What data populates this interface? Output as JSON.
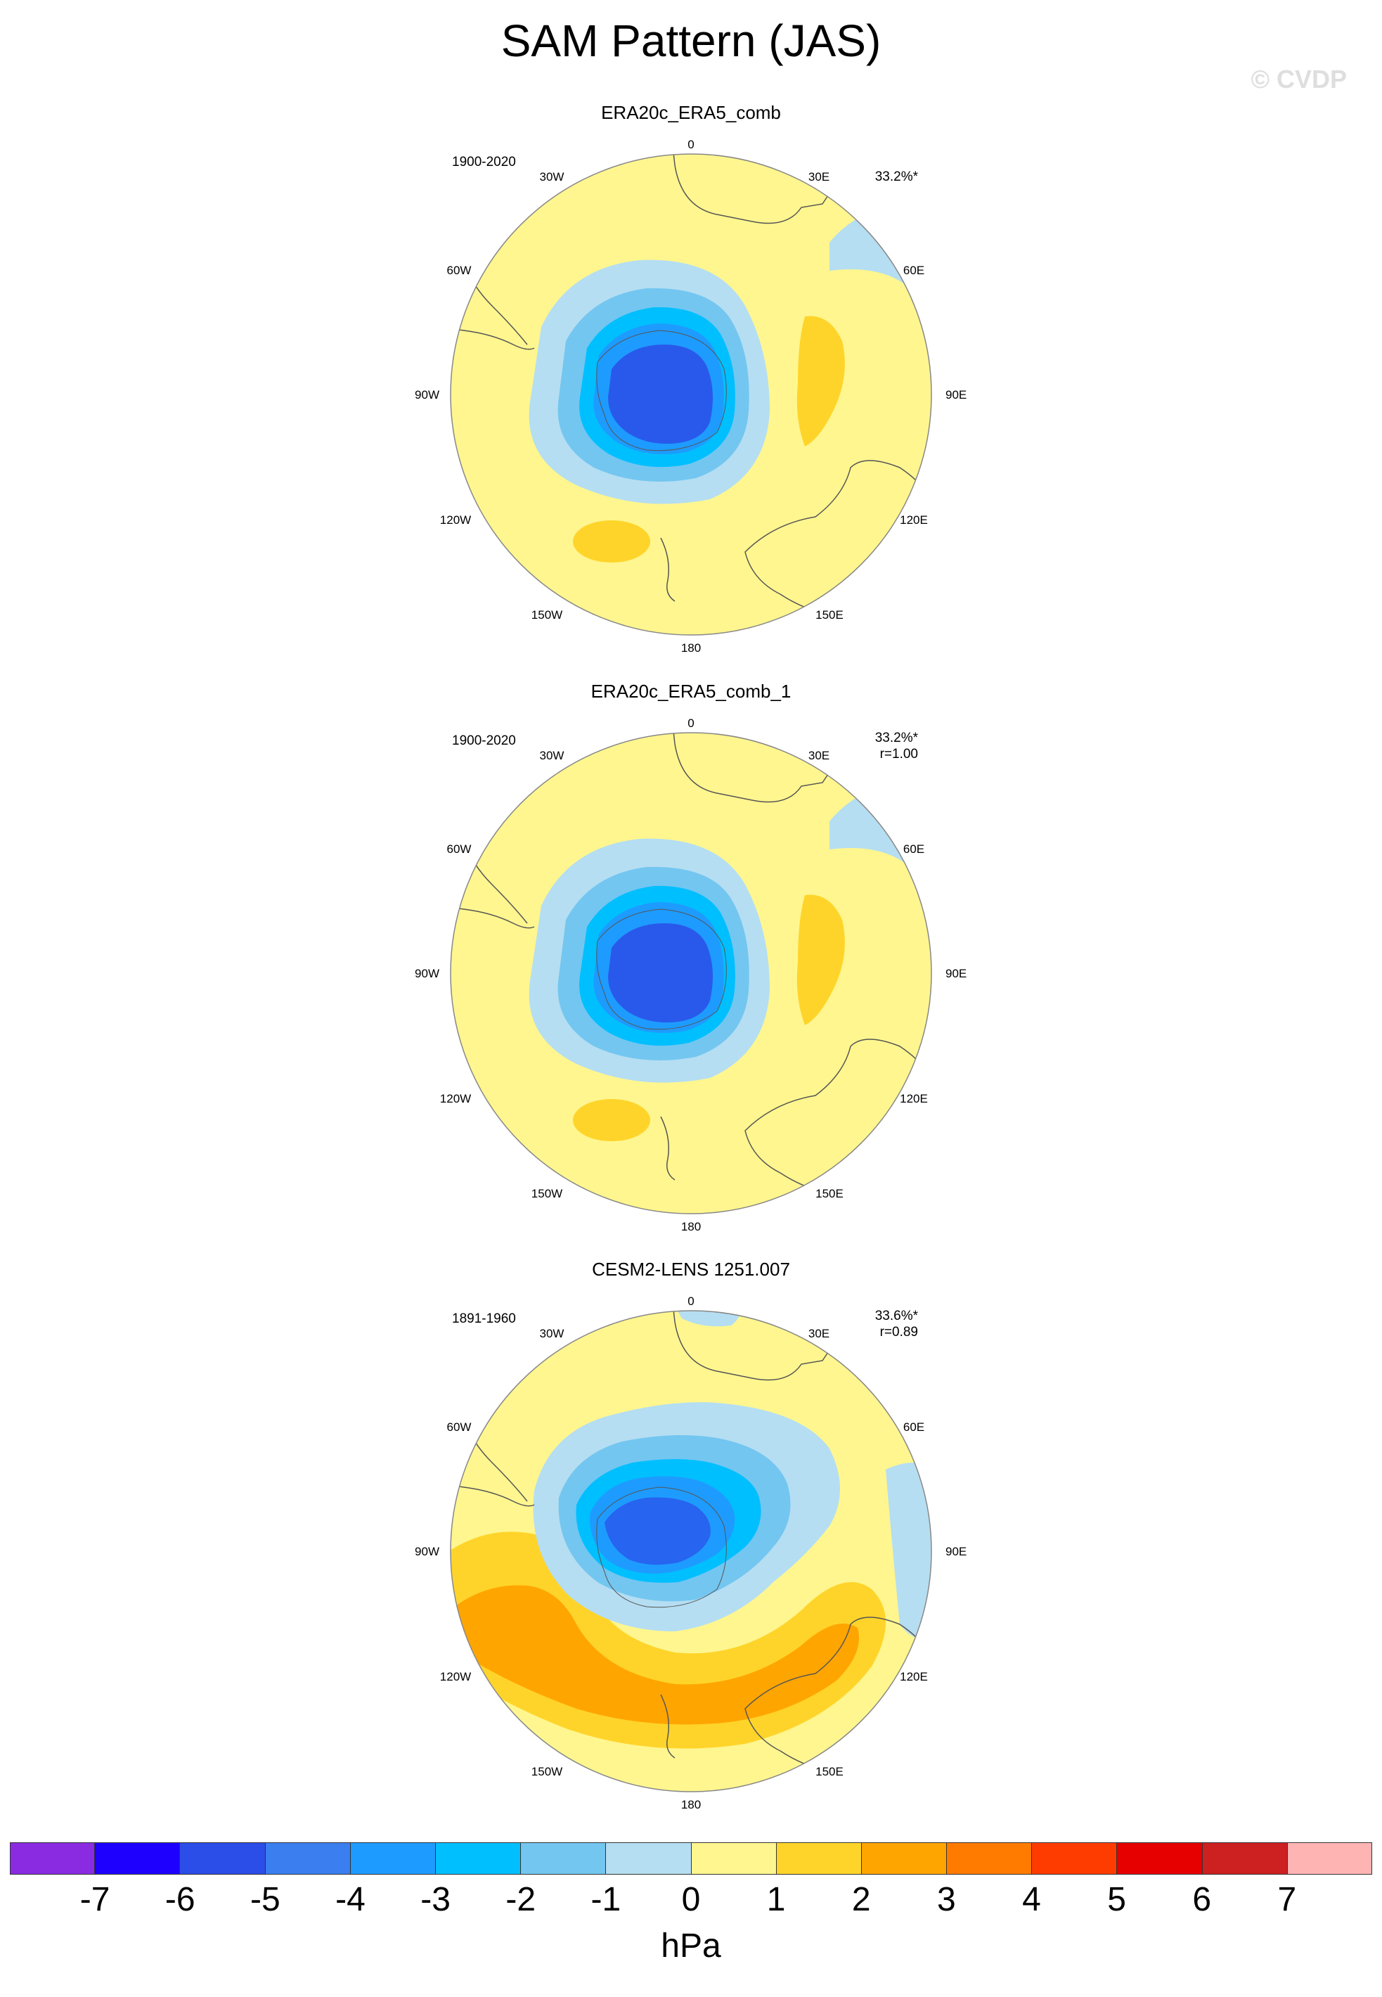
{
  "title": "SAM Pattern (JAS)",
  "copyright": "© CVDP",
  "panels": [
    {
      "title": "ERA20c_ERA5_comb",
      "years": "1900-2020",
      "pct": "33.2%*",
      "r": ""
    },
    {
      "title": "ERA20c_ERA5_comb_1",
      "years": "1900-2020",
      "pct": "33.2%*",
      "r": "r=1.00"
    },
    {
      "title": "CESM2-LENS 1251.007",
      "years": "1891-1960",
      "pct": "33.6%*",
      "r": "r=0.89"
    }
  ],
  "lon_labels": [
    "0",
    "30E",
    "60E",
    "90E",
    "120E",
    "150E",
    "180",
    "150W",
    "120W",
    "90W",
    "60W",
    "30W"
  ],
  "colorbar": {
    "colors": [
      "#8a2be2",
      "#1e00ff",
      "#2b4de8",
      "#3a7ef0",
      "#1e9bff",
      "#00bfff",
      "#73c6f0",
      "#b5def2",
      "#fff68f",
      "#ffd42a",
      "#ffa500",
      "#ff7b00",
      "#ff3c00",
      "#e60000",
      "#cd2020",
      "#ffb4b4"
    ],
    "labels": [
      "-7",
      "-6",
      "-5",
      "-4",
      "-3",
      "-2",
      "-1",
      "0",
      "1",
      "2",
      "3",
      "4",
      "5",
      "6",
      "7"
    ],
    "units": "hPa"
  }
}
